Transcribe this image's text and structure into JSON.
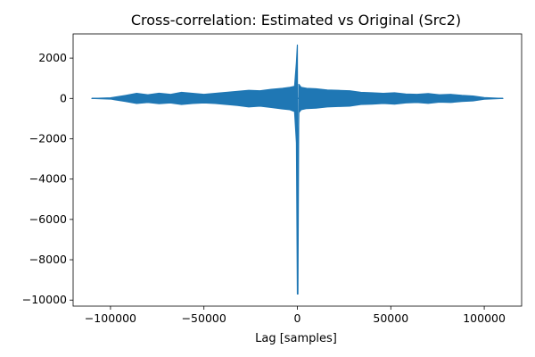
{
  "chart_data": {
    "type": "line",
    "title": "Cross-correlation: Estimated vs Original (Src2)",
    "xlabel": "Lag [samples]",
    "ylabel": "",
    "xlim": [
      -120000,
      120000
    ],
    "ylim": [
      -10300,
      3200
    ],
    "xticks": [
      -100000,
      -50000,
      0,
      50000,
      100000
    ],
    "xtick_labels": [
      "−100000",
      "−50000",
      "0",
      "50000",
      "100000"
    ],
    "yticks": [
      -10000,
      -8000,
      -6000,
      -4000,
      -2000,
      0,
      2000
    ],
    "ytick_labels": [
      "−10000",
      "−8000",
      "−6000",
      "−4000",
      "−2000",
      "0",
      "2000"
    ],
    "grid": false,
    "legend": "none",
    "line_color": "#1f77b4",
    "series": [
      {
        "x": [
          -110000,
          -100000,
          -92000,
          -86000,
          -80000,
          -74000,
          -68000,
          -62000,
          -56000,
          -50000,
          -44000,
          -38000,
          -32000,
          -26000,
          -20000,
          -14000,
          -8000,
          -4000,
          -1500,
          -500,
          0,
          300,
          800,
          2000,
          5000,
          10000,
          16000,
          22000,
          28000,
          34000,
          40000,
          46000,
          52000,
          58000,
          64000,
          70000,
          76000,
          82000,
          88000,
          94000,
          100000,
          110000
        ],
        "y": [
          0,
          30,
          150,
          250,
          180,
          260,
          200,
          300,
          250,
          200,
          250,
          300,
          350,
          400,
          380,
          450,
          500,
          550,
          600,
          1800,
          2650,
          -9700,
          700,
          550,
          500,
          480,
          420,
          400,
          380,
          300,
          280,
          250,
          280,
          220,
          200,
          240,
          180,
          200,
          150,
          120,
          40,
          0
        ],
        "y_lower": [
          0,
          -30,
          -150,
          -250,
          -200,
          -260,
          -220,
          -300,
          -250,
          -220,
          -250,
          -300,
          -350,
          -420,
          -380,
          -450,
          -520,
          -560,
          -650,
          -2200,
          -9700,
          -4000,
          -700,
          -560,
          -500,
          -480,
          -420,
          -400,
          -380,
          -300,
          -280,
          -250,
          -280,
          -220,
          -200,
          -240,
          -180,
          -200,
          -150,
          -120,
          -40,
          0
        ]
      }
    ]
  }
}
